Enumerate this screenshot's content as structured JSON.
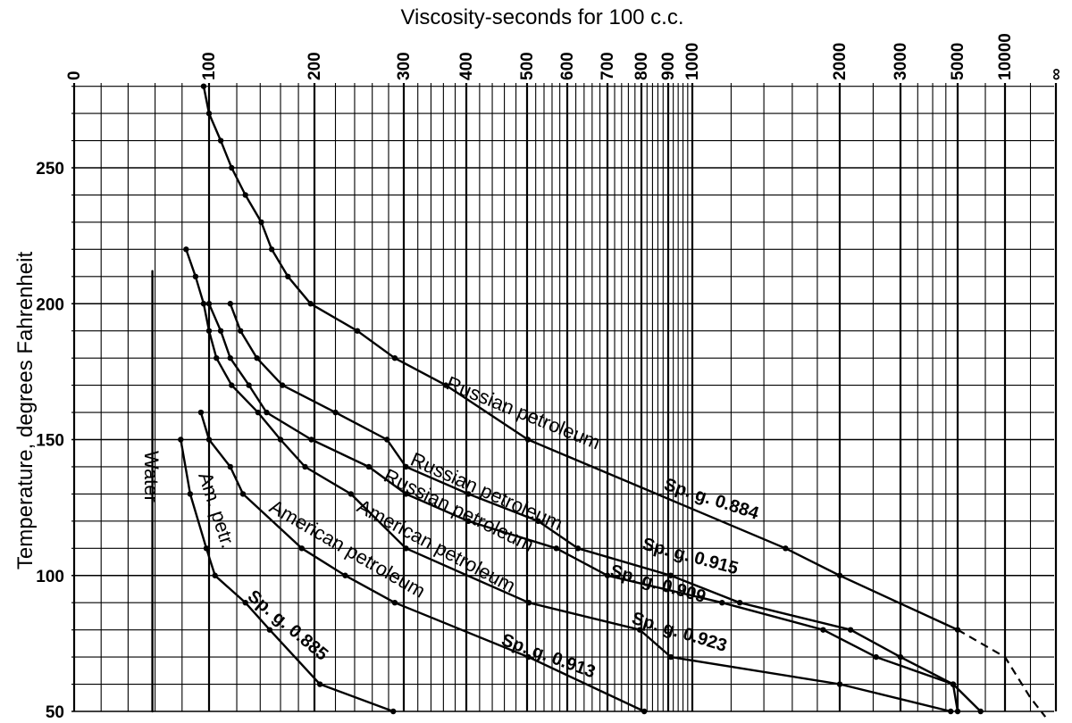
{
  "chart_data": {
    "type": "line",
    "title": "",
    "xlabel": "Viscosity-seconds for 100 c.c.",
    "ylabel": "Temperature, degrees Fahrenheit",
    "x_scale": "custom-log (top axis, seconds for 100 c.c.)",
    "x_ticks": [
      {
        "value": 0,
        "label": "0"
      },
      {
        "value": 100,
        "label": "100"
      },
      {
        "value": 200,
        "label": "200"
      },
      {
        "value": 300,
        "label": "300"
      },
      {
        "value": 400,
        "label": "400"
      },
      {
        "value": 500,
        "label": "500"
      },
      {
        "value": 600,
        "label": "600"
      },
      {
        "value": 700,
        "label": "700"
      },
      {
        "value": 800,
        "label": "800"
      },
      {
        "value": 900,
        "label": "900"
      },
      {
        "value": 1000,
        "label": "1000"
      },
      {
        "value": 2000,
        "label": "2000"
      },
      {
        "value": 3000,
        "label": "3000"
      },
      {
        "value": 5000,
        "label": "5000"
      },
      {
        "value": 10000,
        "label": "10000"
      },
      {
        "value": "infinity",
        "label": "∞"
      }
    ],
    "y_ticks": [
      50,
      100,
      150,
      200,
      250
    ],
    "ylim": [
      50,
      280
    ],
    "grid": true,
    "series": [
      {
        "name": "Water",
        "label": "Water",
        "sg_label": "",
        "dashed_tail": false,
        "points": [
          [
            58,
            212
          ],
          [
            58,
            50
          ]
        ]
      },
      {
        "name": "Am. petr. Sp. g. 0.885",
        "label": "Am. petr.",
        "sg_label": "Sp. g. 0.885",
        "dashed_tail": false,
        "points": [
          [
            79,
            150
          ],
          [
            86,
            130
          ],
          [
            98,
            110
          ],
          [
            104,
            100
          ],
          [
            127,
            90
          ],
          [
            149,
            80
          ],
          [
            205,
            60
          ],
          [
            286,
            50
          ]
        ]
      },
      {
        "name": "American petroleum Sp. g. 0.913",
        "label": "American petroleum",
        "sg_label": "Sp. g. 0.913",
        "dashed_tail": false,
        "points": [
          [
            94,
            160
          ],
          [
            100,
            150
          ],
          [
            115,
            140
          ],
          [
            125,
            130
          ],
          [
            184,
            110
          ],
          [
            230,
            100
          ],
          [
            288,
            90
          ],
          [
            503,
            70
          ],
          [
            810,
            50
          ]
        ]
      },
      {
        "name": "American petroleum Sp. g. 0.923",
        "label": "American petroleum",
        "sg_label": "Sp. g. 0.923",
        "dashed_tail": false,
        "points": [
          [
            83,
            220
          ],
          [
            90,
            210
          ],
          [
            96,
            200
          ],
          [
            100,
            190
          ],
          [
            105,
            180
          ],
          [
            116,
            170
          ],
          [
            138,
            160
          ],
          [
            160,
            150
          ],
          [
            188,
            140
          ],
          [
            236,
            130
          ],
          [
            303,
            110
          ],
          [
            504,
            90
          ],
          [
            795,
            80
          ],
          [
            911,
            70
          ],
          [
            2000,
            60
          ],
          [
            4700,
            50
          ]
        ]
      },
      {
        "name": "Russian petroleum Sp. g. 0.909",
        "label": "Russian petroleum",
        "sg_label": "Sp. g. 0.909",
        "dashed_tail": false,
        "points": [
          [
            100,
            200
          ],
          [
            108,
            190
          ],
          [
            115,
            180
          ],
          [
            130,
            170
          ],
          [
            146,
            160
          ],
          [
            196,
            150
          ],
          [
            256,
            140
          ],
          [
            303,
            130
          ],
          [
            403,
            120
          ],
          [
            571,
            110
          ],
          [
            700,
            100
          ],
          [
            1150,
            90
          ],
          [
            1850,
            80
          ],
          [
            2550,
            70
          ],
          [
            4800,
            60
          ],
          [
            5000,
            50
          ]
        ]
      },
      {
        "name": "Russian petroleum Sp. g. 0.915",
        "label": "Russian petroleum",
        "sg_label": "Sp. g. 0.915",
        "dashed_tail": false,
        "points": [
          [
            115,
            200
          ],
          [
            123,
            190
          ],
          [
            137,
            180
          ],
          [
            162,
            170
          ],
          [
            220,
            160
          ],
          [
            278,
            150
          ],
          [
            303,
            140
          ],
          [
            403,
            130
          ],
          [
            526,
            120
          ],
          [
            625,
            110
          ],
          [
            910,
            100
          ],
          [
            1250,
            90
          ],
          [
            2150,
            80
          ],
          [
            3000,
            70
          ],
          [
            4800,
            60
          ],
          [
            7000,
            50
          ]
        ]
      },
      {
        "name": "Russian petroleum Sp. g. 0.884",
        "label": "Russian petroleum",
        "sg_label": "Sp. g. 0.884",
        "dashed_tail": true,
        "points": [
          [
            96,
            280
          ],
          [
            100,
            270
          ],
          [
            108,
            260
          ],
          [
            116,
            250
          ],
          [
            127,
            240
          ],
          [
            141,
            230
          ],
          [
            151,
            220
          ],
          [
            168,
            210
          ],
          [
            195,
            200
          ],
          [
            243,
            190
          ],
          [
            288,
            180
          ],
          [
            364,
            170
          ],
          [
            502,
            150
          ],
          [
            1550,
            110
          ],
          [
            2000,
            100
          ],
          [
            5000,
            80
          ],
          [
            10000,
            70
          ],
          [
            20000,
            55
          ],
          [
            30000,
            48
          ]
        ]
      }
    ]
  }
}
